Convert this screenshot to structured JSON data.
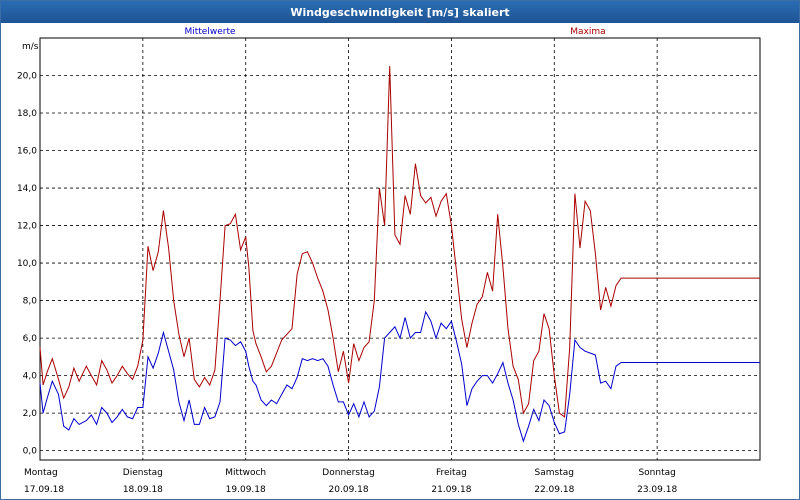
{
  "window": {
    "title": "Windgeschwindigkeit [m/s] skaliert"
  },
  "chart_data": {
    "type": "line",
    "title": "Windgeschwindigkeit [m/s] skaliert",
    "ylabel": "m/s",
    "ylim": [
      -0.5,
      22
    ],
    "xlim": [
      0,
      7
    ],
    "grid": true,
    "y_ticks": [
      "0,0",
      "2,0",
      "4,0",
      "6,0",
      "8,0",
      "10,0",
      "12,0",
      "14,0",
      "16,0",
      "18,0",
      "20,0"
    ],
    "x_ticks": [
      {
        "day": "Montag",
        "date": "17.09.18"
      },
      {
        "day": "Dienstag",
        "date": "18.09.18"
      },
      {
        "day": "Mittwoch",
        "date": "19.09.18"
      },
      {
        "day": "Donnerstag",
        "date": "20.09.18"
      },
      {
        "day": "Freitag",
        "date": "21.09.18"
      },
      {
        "day": "Samstag",
        "date": "22.09.18"
      },
      {
        "day": "Sonntag",
        "date": "23.09.18"
      }
    ],
    "series": [
      {
        "name": "Mittelwerte",
        "color": "#0000cc",
        "x": [
          0,
          0.03,
          0.07,
          0.12,
          0.18,
          0.23,
          0.28,
          0.33,
          0.38,
          0.45,
          0.5,
          0.55,
          0.6,
          0.65,
          0.7,
          0.75,
          0.8,
          0.85,
          0.9,
          0.95,
          1.0,
          1.05,
          1.1,
          1.15,
          1.2,
          1.25,
          1.3,
          1.35,
          1.4,
          1.45,
          1.5,
          1.55,
          1.6,
          1.65,
          1.7,
          1.75,
          1.8,
          1.85,
          1.9,
          1.95,
          2.0,
          2.03,
          2.07,
          2.1,
          2.15,
          2.2,
          2.25,
          2.3,
          2.35,
          2.4,
          2.45,
          2.5,
          2.55,
          2.6,
          2.65,
          2.7,
          2.75,
          2.8,
          2.85,
          2.9,
          2.95,
          3.0,
          3.05,
          3.1,
          3.15,
          3.2,
          3.25,
          3.3,
          3.35,
          3.4,
          3.45,
          3.5,
          3.55,
          3.6,
          3.65,
          3.7,
          3.75,
          3.8,
          3.85,
          3.9,
          3.95,
          4.0,
          4.05,
          4.1,
          4.15,
          4.2,
          4.25,
          4.3,
          4.35,
          4.4,
          4.45,
          4.5,
          4.55,
          4.6,
          4.65,
          4.7,
          4.75,
          4.8,
          4.85,
          4.9,
          4.95,
          5.0,
          5.05,
          5.1,
          5.15,
          5.2,
          5.25,
          5.3,
          5.35,
          5.4,
          5.45,
          5.5,
          5.55,
          5.6,
          5.65,
          5.7,
          5.75,
          5.8,
          5.85,
          5.9,
          5.95,
          6.0,
          6.05,
          6.1,
          6.15,
          6.2,
          6.25,
          6.3,
          6.35,
          6.4,
          6.45,
          6.5,
          6.55,
          6.6,
          6.65,
          6.7,
          6.75,
          6.8,
          6.85,
          6.9,
          6.95,
          7.0
        ],
        "values": [
          3.6,
          2.0,
          2.8,
          3.7,
          3.0,
          1.3,
          1.1,
          1.7,
          1.4,
          1.6,
          1.9,
          1.4,
          2.3,
          2.0,
          1.5,
          1.8,
          2.2,
          1.8,
          1.7,
          2.3,
          2.3,
          5.0,
          4.4,
          5.2,
          6.3,
          5.3,
          4.3,
          2.6,
          1.6,
          2.7,
          1.4,
          1.4,
          2.3,
          1.7,
          1.8,
          2.6,
          6.0,
          5.9,
          5.6,
          5.8,
          5.3,
          4.5,
          3.7,
          3.5,
          2.7,
          2.4,
          2.7,
          2.5,
          3.0,
          3.5,
          3.3,
          3.9,
          4.9,
          4.8,
          4.9,
          4.8,
          4.9,
          4.5,
          3.5,
          2.6,
          2.6,
          1.9,
          2.5,
          1.8,
          2.6,
          1.8,
          2.1,
          3.4,
          6.0,
          6.3,
          6.6,
          6.0,
          7.1,
          6.0,
          6.3,
          6.3,
          7.4,
          6.9,
          6.0,
          6.8,
          6.5,
          6.9,
          5.8,
          4.6,
          2.4,
          3.3,
          3.7,
          4.0,
          4.0,
          3.6,
          4.1,
          4.7,
          3.6,
          2.7,
          1.4,
          0.5,
          1.3,
          2.2,
          1.6,
          2.7,
          2.4,
          1.5,
          0.9,
          1.0,
          3.0,
          5.9,
          5.5,
          5.3,
          5.2,
          5.1,
          3.6,
          3.7,
          3.3,
          4.5,
          4.7,
          4.7,
          4.7,
          4.7,
          4.7,
          4.7,
          4.7,
          4.7,
          4.7,
          4.7,
          4.7,
          4.7,
          4.7,
          4.7,
          4.7,
          4.7,
          4.7,
          4.7,
          4.7,
          4.7,
          4.7,
          4.7,
          4.7,
          4.7,
          4.7,
          4.7,
          4.7,
          4.7
        ]
      },
      {
        "name": "Maxima",
        "color": "#aa0000",
        "x": [
          0,
          0.03,
          0.07,
          0.12,
          0.18,
          0.23,
          0.28,
          0.33,
          0.38,
          0.45,
          0.5,
          0.55,
          0.6,
          0.65,
          0.7,
          0.75,
          0.8,
          0.85,
          0.9,
          0.95,
          1.0,
          1.05,
          1.1,
          1.15,
          1.2,
          1.25,
          1.3,
          1.35,
          1.4,
          1.45,
          1.5,
          1.55,
          1.6,
          1.65,
          1.7,
          1.75,
          1.8,
          1.85,
          1.9,
          1.95,
          2.0,
          2.03,
          2.07,
          2.1,
          2.15,
          2.2,
          2.25,
          2.3,
          2.35,
          2.4,
          2.45,
          2.5,
          2.55,
          2.6,
          2.65,
          2.7,
          2.75,
          2.8,
          2.85,
          2.9,
          2.95,
          3.0,
          3.05,
          3.1,
          3.15,
          3.2,
          3.25,
          3.3,
          3.35,
          3.4,
          3.45,
          3.5,
          3.55,
          3.6,
          3.65,
          3.7,
          3.75,
          3.8,
          3.85,
          3.9,
          3.95,
          4.0,
          4.05,
          4.1,
          4.15,
          4.2,
          4.25,
          4.3,
          4.35,
          4.4,
          4.45,
          4.5,
          4.55,
          4.6,
          4.65,
          4.7,
          4.75,
          4.8,
          4.85,
          4.9,
          4.95,
          5.0,
          5.05,
          5.1,
          5.15,
          5.2,
          5.25,
          5.3,
          5.35,
          5.4,
          5.45,
          5.5,
          5.55,
          5.6,
          5.65,
          5.7,
          5.75,
          5.8,
          5.85,
          5.9,
          5.95,
          6.0,
          6.05,
          6.1,
          6.15,
          6.2,
          6.25,
          6.3,
          6.35,
          6.4,
          6.45,
          6.5,
          6.55,
          6.6,
          6.65,
          6.7,
          6.75,
          6.8,
          6.85,
          6.9,
          6.95,
          7.0
        ],
        "values": [
          5.5,
          3.5,
          4.2,
          4.9,
          3.8,
          2.8,
          3.4,
          4.4,
          3.7,
          4.5,
          4.0,
          3.5,
          4.8,
          4.3,
          3.6,
          4.0,
          4.5,
          4.1,
          3.8,
          4.5,
          5.9,
          10.9,
          9.6,
          10.6,
          12.8,
          10.8,
          8.0,
          6.2,
          5.0,
          6.0,
          3.8,
          3.4,
          3.9,
          3.5,
          4.3,
          8.0,
          12.0,
          12.1,
          12.6,
          10.7,
          11.4,
          9.8,
          6.4,
          5.7,
          5.0,
          4.2,
          4.5,
          5.2,
          5.9,
          6.2,
          6.5,
          9.4,
          10.5,
          10.6,
          10.0,
          9.2,
          8.5,
          7.5,
          6.0,
          4.2,
          5.3,
          3.6,
          5.7,
          4.8,
          5.5,
          5.8,
          8.0,
          14.0,
          12.0,
          20.5,
          11.5,
          11.0,
          13.6,
          12.6,
          15.3,
          13.6,
          13.2,
          13.5,
          12.5,
          13.3,
          13.7,
          12.0,
          9.5,
          7.0,
          5.5,
          6.8,
          7.8,
          8.2,
          9.5,
          8.5,
          12.6,
          9.8,
          6.5,
          4.5,
          3.8,
          2.0,
          2.5,
          4.8,
          5.3,
          7.3,
          6.5,
          4.0,
          2.0,
          1.8,
          5.5,
          13.7,
          10.8,
          13.3,
          12.8,
          10.5,
          7.5,
          8.7,
          7.7,
          8.8,
          9.2,
          9.2,
          9.2,
          9.2,
          9.2,
          9.2,
          9.2,
          9.2,
          9.2,
          9.2,
          9.2,
          9.2,
          9.2,
          9.2,
          9.2,
          9.2,
          9.2,
          9.2,
          9.2,
          9.2,
          9.2,
          9.2,
          9.2,
          9.2,
          9.2,
          9.2,
          9.2,
          9.2
        ]
      }
    ]
  }
}
